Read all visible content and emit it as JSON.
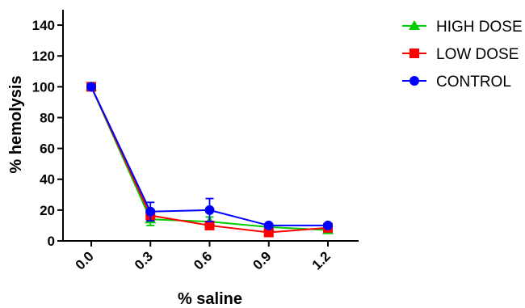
{
  "chart_data": {
    "type": "line",
    "xlabel": "% saline",
    "ylabel": "% hemolysis",
    "x": [
      0.0,
      0.3,
      0.6,
      0.9,
      1.2
    ],
    "x_tick_labels": [
      "0.0",
      "0.3",
      "0.6",
      "0.9",
      "1.2"
    ],
    "y_ticks": [
      0,
      20,
      40,
      60,
      80,
      100,
      120,
      140
    ],
    "ylim": [
      0,
      150
    ],
    "grid": false,
    "legend_position": "top-right",
    "series": [
      {
        "name": "HIGH DOSE",
        "color": "#00cc00",
        "marker": "triangle",
        "values": [
          100,
          14,
          12.5,
          9,
          7
        ],
        "errors": [
          1,
          4,
          3,
          1.5,
          1
        ]
      },
      {
        "name": "LOW DOSE",
        "color": "#ff0000",
        "marker": "square",
        "values": [
          100,
          16.5,
          10,
          5.5,
          8.5
        ],
        "errors": [
          1,
          2,
          1.5,
          1,
          1
        ]
      },
      {
        "name": "CONTROL",
        "color": "#0000ff",
        "marker": "circle",
        "values": [
          100,
          19,
          20,
          10,
          10
        ],
        "errors": [
          1,
          6,
          7.5,
          1,
          1
        ]
      }
    ]
  }
}
